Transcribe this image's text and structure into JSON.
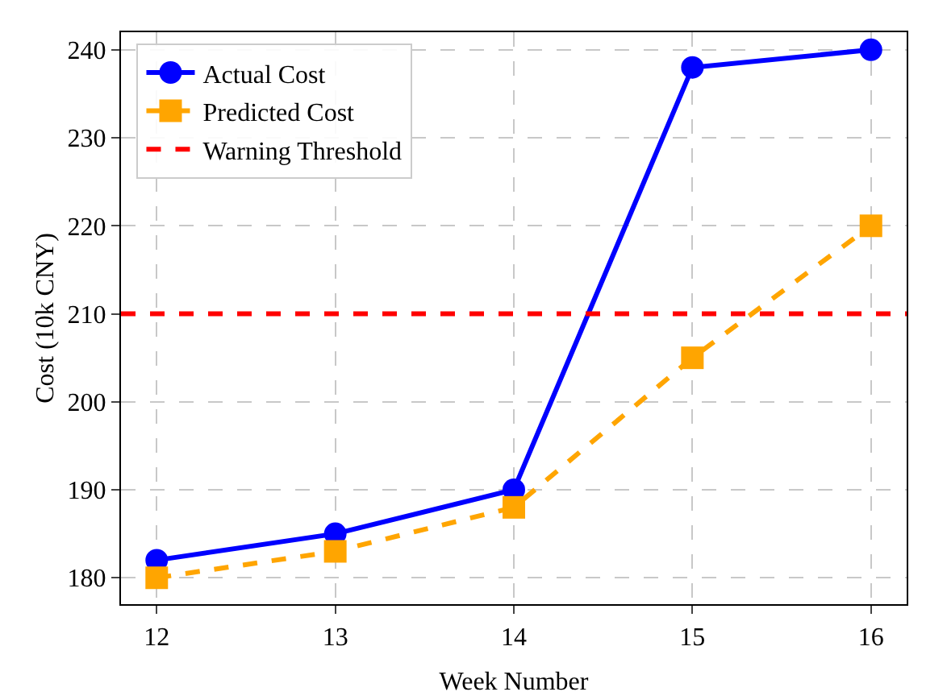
{
  "chart_data": {
    "type": "line",
    "xlabel": "Week Number",
    "ylabel": "Cost (10k CNY)",
    "x": [
      12,
      13,
      14,
      15,
      16
    ],
    "series": [
      {
        "name": "Actual Cost",
        "color": "#0000ff",
        "values": [
          182,
          185,
          190,
          238,
          240
        ],
        "marker": "circle",
        "line_style": "solid"
      },
      {
        "name": "Predicted Cost",
        "color": "#ffa500",
        "values": [
          180,
          183,
          188,
          205,
          220
        ],
        "marker": "square",
        "line_style": "dashed"
      }
    ],
    "ref_lines": [
      {
        "axis": "y",
        "value": 210,
        "label": "Warning Threshold",
        "color": "#ff0000",
        "line_style": "dashed"
      }
    ],
    "xlim": [
      11.8,
      16.2
    ],
    "xticks": [
      12,
      13,
      14,
      15,
      16
    ],
    "ylim": [
      177,
      242
    ],
    "yticks": [
      180,
      190,
      200,
      210,
      220,
      230,
      240
    ],
    "grid": true,
    "legend": "top left"
  }
}
